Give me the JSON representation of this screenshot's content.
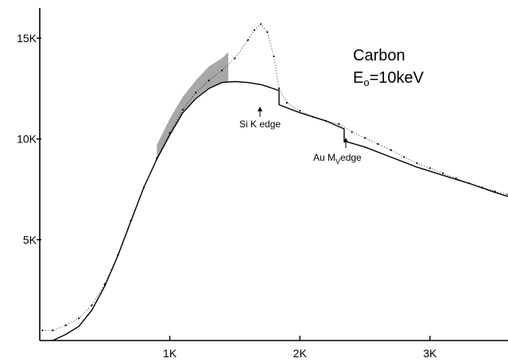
{
  "chart_data": {
    "type": "line",
    "title": "",
    "xlabel": "",
    "ylabel": "",
    "xlim": [
      0,
      3600
    ],
    "ylim": [
      0,
      16500
    ],
    "x_ticks": [
      {
        "value": 1000,
        "label": "1K"
      },
      {
        "value": 2000,
        "label": "2K"
      },
      {
        "value": 3000,
        "label": "3K"
      }
    ],
    "y_ticks": [
      {
        "value": 5000,
        "label": "5K"
      },
      {
        "value": 10000,
        "label": "10K"
      },
      {
        "value": 15000,
        "label": "15K"
      }
    ],
    "grid": false,
    "legend": "none",
    "series": [
      {
        "kind": "model-line",
        "color": "#000000",
        "x": [
          100,
          200,
          300,
          400,
          500,
          600,
          700,
          800,
          900,
          1000,
          1100,
          1200,
          1300,
          1400,
          1500,
          1600,
          1700,
          1750,
          1840,
          1840,
          2000,
          2200,
          2340,
          2340,
          2500,
          2700,
          2900,
          3100,
          3300,
          3500,
          3600
        ],
        "y": [
          0,
          300,
          700,
          1500,
          2700,
          4200,
          5900,
          7600,
          9000,
          10200,
          11300,
          12000,
          12500,
          12800,
          12850,
          12800,
          12700,
          12600,
          12400,
          11700,
          11300,
          10900,
          10500,
          9900,
          9600,
          9100,
          8600,
          8200,
          7800,
          7350,
          7150
        ]
      },
      {
        "kind": "measured-points",
        "color": "#000000",
        "x": [
          20,
          100,
          200,
          300,
          400,
          500,
          600,
          700,
          800,
          900,
          1000,
          1100,
          1200,
          1300,
          1400,
          1500,
          1600,
          1650,
          1700,
          1750,
          1800,
          1840,
          1900,
          2000,
          2100,
          2200,
          2300,
          2400,
          2500,
          2600,
          2700,
          2800,
          2900,
          3000,
          3100,
          3200,
          3300,
          3400,
          3500,
          3600
        ],
        "y": [
          500,
          500,
          750,
          1100,
          1750,
          2800,
          4250,
          5950,
          7600,
          9050,
          10300,
          11450,
          12300,
          12900,
          13400,
          14000,
          14900,
          15400,
          15700,
          15300,
          14100,
          12500,
          11800,
          11400,
          11100,
          10900,
          10750,
          10350,
          10050,
          9750,
          9450,
          9100,
          8800,
          8550,
          8300,
          8050,
          7800,
          7600,
          7400,
          7250
        ]
      }
    ],
    "shaded_region": {
      "label": "",
      "x": [
        900,
        1000,
        1100,
        1200,
        1300,
        1400,
        1450
      ],
      "y_low": [
        9050,
        10250,
        11350,
        12050,
        12550,
        12800,
        12850
      ],
      "y_high": [
        9700,
        11000,
        12100,
        12900,
        13600,
        14000,
        14300
      ]
    },
    "annotations": {
      "material": "Carbon",
      "energy_prefix": "E",
      "energy_sub": "o",
      "energy_value": "=10keV",
      "si_edge": {
        "label": "Si K edge",
        "x": 1840
      },
      "au_edge": {
        "prefix": "Au M",
        "sub": "V",
        "suffix": "edge",
        "x": 2340
      }
    }
  }
}
